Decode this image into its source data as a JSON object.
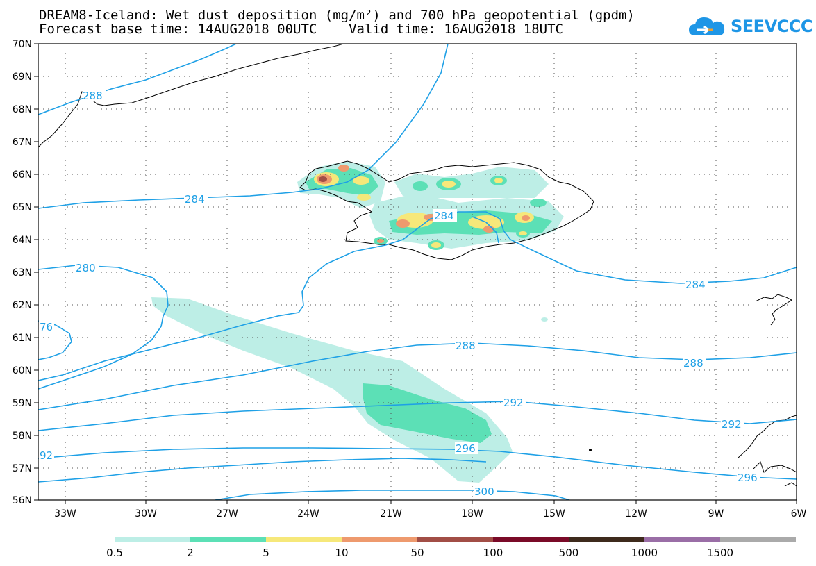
{
  "title": {
    "line1": "DREAM8-Iceland: Wet dust deposition (mg/m²) and 700 hPa geopotential (gpdm)",
    "line2": "Forecast base time: 14AUG2018 00UTC    Valid time: 16AUG2018 18UTC"
  },
  "logo": {
    "text": "SEEVCCC"
  },
  "axes": {
    "lat_labels": [
      "70N",
      "69N",
      "68N",
      "67N",
      "66N",
      "65N",
      "64N",
      "63N",
      "62N",
      "61N",
      "60N",
      "59N",
      "58N",
      "57N",
      "56N"
    ],
    "lon_labels": [
      "33W",
      "30W",
      "27W",
      "24W",
      "21W",
      "18W",
      "15W",
      "12W",
      "9W",
      "6W"
    ]
  },
  "contours": {
    "color": "#1ea0e6",
    "labels": [
      "288",
      "284",
      "284",
      "280",
      "76",
      "284",
      "288",
      "288",
      "292",
      "292",
      "92",
      "296",
      "296",
      "300"
    ]
  },
  "legend": {
    "colors": [
      "#bdeee6",
      "#5ce0b6",
      "#f6e87a",
      "#ee9a6e",
      "#a24e46",
      "#7a0a28",
      "#3e2a1c",
      "#9a6ea6",
      "#aaaaaa"
    ],
    "labels": [
      "0.5",
      "2",
      "5",
      "10",
      "50",
      "100",
      "500",
      "1000",
      "1500"
    ]
  }
}
